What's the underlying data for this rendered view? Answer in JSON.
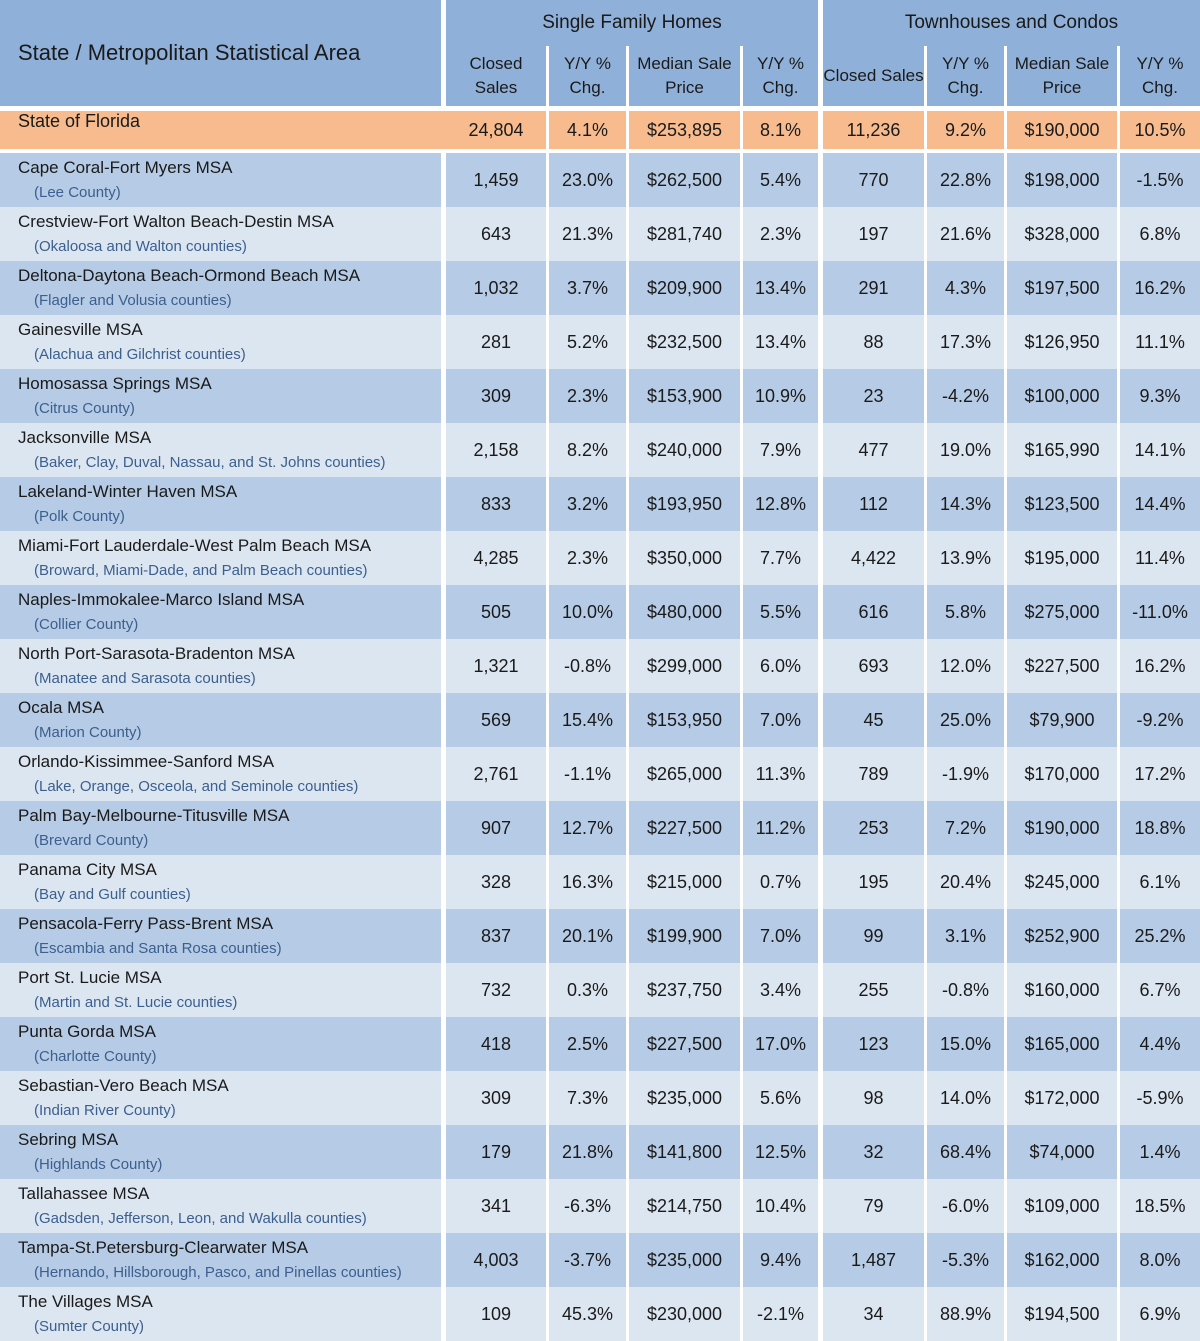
{
  "header": {
    "area_label": "State / Metropolitan Statistical Area",
    "group_sfh": "Single Family Homes",
    "group_tc": "Townhouses and Condos",
    "col_closed_sales": "Closed Sales",
    "col_yy_chg": "Y/Y % Chg.",
    "col_median_price": "Median Sale Price"
  },
  "state": {
    "name": "State of Florida",
    "sfh_sales": "24,804",
    "sfh_sales_chg": "4.1%",
    "sfh_price": "$253,895",
    "sfh_price_chg": "8.1%",
    "tc_sales": "11,236",
    "tc_sales_chg": "9.2%",
    "tc_price": "$190,000",
    "tc_price_chg": "10.5%"
  },
  "rows": [
    {
      "msa": "Cape Coral-Fort Myers MSA",
      "counties": "(Lee County)",
      "sfh_sales": "1,459",
      "sfh_sales_chg": "23.0%",
      "sfh_price": "$262,500",
      "sfh_price_chg": "5.4%",
      "tc_sales": "770",
      "tc_sales_chg": "22.8%",
      "tc_price": "$198,000",
      "tc_price_chg": "-1.5%"
    },
    {
      "msa": "Crestview-Fort Walton Beach-Destin MSA",
      "counties": "(Okaloosa  and Walton counties)",
      "sfh_sales": "643",
      "sfh_sales_chg": "21.3%",
      "sfh_price": "$281,740",
      "sfh_price_chg": "2.3%",
      "tc_sales": "197",
      "tc_sales_chg": "21.6%",
      "tc_price": "$328,000",
      "tc_price_chg": "6.8%"
    },
    {
      "msa": "Deltona-Daytona Beach-Ormond Beach MSA",
      "counties": "(Flagler and Volusia counties)",
      "sfh_sales": "1,032",
      "sfh_sales_chg": "3.7%",
      "sfh_price": "$209,900",
      "sfh_price_chg": "13.4%",
      "tc_sales": "291",
      "tc_sales_chg": "4.3%",
      "tc_price": "$197,500",
      "tc_price_chg": "16.2%"
    },
    {
      "msa": "Gainesville MSA",
      "counties": "(Alachua and Gilchrist counties)",
      "sfh_sales": "281",
      "sfh_sales_chg": "5.2%",
      "sfh_price": "$232,500",
      "sfh_price_chg": "13.4%",
      "tc_sales": "88",
      "tc_sales_chg": "17.3%",
      "tc_price": "$126,950",
      "tc_price_chg": "11.1%"
    },
    {
      "msa": "Homosassa Springs MSA",
      "counties": "(Citrus County)",
      "sfh_sales": "309",
      "sfh_sales_chg": "2.3%",
      "sfh_price": "$153,900",
      "sfh_price_chg": "10.9%",
      "tc_sales": "23",
      "tc_sales_chg": "-4.2%",
      "tc_price": "$100,000",
      "tc_price_chg": "9.3%"
    },
    {
      "msa": "Jacksonville MSA",
      "counties": "(Baker, Clay, Duval, Nassau, and St. Johns counties)",
      "sfh_sales": "2,158",
      "sfh_sales_chg": "8.2%",
      "sfh_price": "$240,000",
      "sfh_price_chg": "7.9%",
      "tc_sales": "477",
      "tc_sales_chg": "19.0%",
      "tc_price": "$165,990",
      "tc_price_chg": "14.1%"
    },
    {
      "msa": "Lakeland-Winter Haven MSA",
      "counties": "(Polk County)",
      "sfh_sales": "833",
      "sfh_sales_chg": "3.2%",
      "sfh_price": "$193,950",
      "sfh_price_chg": "12.8%",
      "tc_sales": "112",
      "tc_sales_chg": "14.3%",
      "tc_price": "$123,500",
      "tc_price_chg": "14.4%"
    },
    {
      "msa": "Miami-Fort Lauderdale-West Palm Beach MSA",
      "counties": "(Broward, Miami-Dade, and Palm Beach counties)",
      "sfh_sales": "4,285",
      "sfh_sales_chg": "2.3%",
      "sfh_price": "$350,000",
      "sfh_price_chg": "7.7%",
      "tc_sales": "4,422",
      "tc_sales_chg": "13.9%",
      "tc_price": "$195,000",
      "tc_price_chg": "11.4%"
    },
    {
      "msa": "Naples-Immokalee-Marco Island MSA",
      "counties": "(Collier County)",
      "sfh_sales": "505",
      "sfh_sales_chg": "10.0%",
      "sfh_price": "$480,000",
      "sfh_price_chg": "5.5%",
      "tc_sales": "616",
      "tc_sales_chg": "5.8%",
      "tc_price": "$275,000",
      "tc_price_chg": "-11.0%"
    },
    {
      "msa": "North Port-Sarasota-Bradenton MSA",
      "counties": "(Manatee and Sarasota counties)",
      "sfh_sales": "1,321",
      "sfh_sales_chg": "-0.8%",
      "sfh_price": "$299,000",
      "sfh_price_chg": "6.0%",
      "tc_sales": "693",
      "tc_sales_chg": "12.0%",
      "tc_price": "$227,500",
      "tc_price_chg": "16.2%"
    },
    {
      "msa": "Ocala MSA",
      "counties": "(Marion County)",
      "sfh_sales": "569",
      "sfh_sales_chg": "15.4%",
      "sfh_price": "$153,950",
      "sfh_price_chg": "7.0%",
      "tc_sales": "45",
      "tc_sales_chg": "25.0%",
      "tc_price": "$79,900",
      "tc_price_chg": "-9.2%"
    },
    {
      "msa": "Orlando-Kissimmee-Sanford MSA",
      "counties": "(Lake, Orange, Osceola, and Seminole counties)",
      "sfh_sales": "2,761",
      "sfh_sales_chg": "-1.1%",
      "sfh_price": "$265,000",
      "sfh_price_chg": "11.3%",
      "tc_sales": "789",
      "tc_sales_chg": "-1.9%",
      "tc_price": "$170,000",
      "tc_price_chg": "17.2%"
    },
    {
      "msa": "Palm Bay-Melbourne-Titusville MSA",
      "counties": "(Brevard County)",
      "sfh_sales": "907",
      "sfh_sales_chg": "12.7%",
      "sfh_price": "$227,500",
      "sfh_price_chg": "11.2%",
      "tc_sales": "253",
      "tc_sales_chg": "7.2%",
      "tc_price": "$190,000",
      "tc_price_chg": "18.8%"
    },
    {
      "msa": "Panama City MSA",
      "counties": "(Bay and Gulf counties)",
      "sfh_sales": "328",
      "sfh_sales_chg": "16.3%",
      "sfh_price": "$215,000",
      "sfh_price_chg": "0.7%",
      "tc_sales": "195",
      "tc_sales_chg": "20.4%",
      "tc_price": "$245,000",
      "tc_price_chg": "6.1%"
    },
    {
      "msa": "Pensacola-Ferry Pass-Brent MSA",
      "counties": "(Escambia and Santa Rosa counties)",
      "sfh_sales": "837",
      "sfh_sales_chg": "20.1%",
      "sfh_price": "$199,900",
      "sfh_price_chg": "7.0%",
      "tc_sales": "99",
      "tc_sales_chg": "3.1%",
      "tc_price": "$252,900",
      "tc_price_chg": "25.2%"
    },
    {
      "msa": "Port St. Lucie MSA",
      "counties": "(Martin and St. Lucie counties)",
      "sfh_sales": "732",
      "sfh_sales_chg": "0.3%",
      "sfh_price": "$237,750",
      "sfh_price_chg": "3.4%",
      "tc_sales": "255",
      "tc_sales_chg": "-0.8%",
      "tc_price": "$160,000",
      "tc_price_chg": "6.7%"
    },
    {
      "msa": "Punta Gorda MSA",
      "counties": "(Charlotte County)",
      "sfh_sales": "418",
      "sfh_sales_chg": "2.5%",
      "sfh_price": "$227,500",
      "sfh_price_chg": "17.0%",
      "tc_sales": "123",
      "tc_sales_chg": "15.0%",
      "tc_price": "$165,000",
      "tc_price_chg": "4.4%"
    },
    {
      "msa": "Sebastian-Vero Beach MSA",
      "counties": "(Indian River County)",
      "sfh_sales": "309",
      "sfh_sales_chg": "7.3%",
      "sfh_price": "$235,000",
      "sfh_price_chg": "5.6%",
      "tc_sales": "98",
      "tc_sales_chg": "14.0%",
      "tc_price": "$172,000",
      "tc_price_chg": "-5.9%"
    },
    {
      "msa": "Sebring MSA",
      "counties": "(Highlands County)",
      "sfh_sales": "179",
      "sfh_sales_chg": "21.8%",
      "sfh_price": "$141,800",
      "sfh_price_chg": "12.5%",
      "tc_sales": "32",
      "tc_sales_chg": "68.4%",
      "tc_price": "$74,000",
      "tc_price_chg": "1.4%"
    },
    {
      "msa": "Tallahassee MSA",
      "counties": "(Gadsden, Jefferson, Leon, and Wakulla counties)",
      "sfh_sales": "341",
      "sfh_sales_chg": "-6.3%",
      "sfh_price": "$214,750",
      "sfh_price_chg": "10.4%",
      "tc_sales": "79",
      "tc_sales_chg": "-6.0%",
      "tc_price": "$109,000",
      "tc_price_chg": "18.5%"
    },
    {
      "msa": "Tampa-St.Petersburg-Clearwater MSA",
      "counties": "(Hernando, Hillsborough, Pasco, and Pinellas counties)",
      "sfh_sales": "4,003",
      "sfh_sales_chg": "-3.7%",
      "sfh_price": "$235,000",
      "sfh_price_chg": "9.4%",
      "tc_sales": "1,487",
      "tc_sales_chg": "-5.3%",
      "tc_price": "$162,000",
      "tc_price_chg": "8.0%"
    },
    {
      "msa": "The Villages MSA",
      "counties": "(Sumter County)",
      "sfh_sales": "109",
      "sfh_sales_chg": "45.3%",
      "sfh_price": "$230,000",
      "sfh_price_chg": "-2.1%",
      "tc_sales": "34",
      "tc_sales_chg": "88.9%",
      "tc_price": "$194,500",
      "tc_price_chg": "6.9%"
    }
  ]
}
